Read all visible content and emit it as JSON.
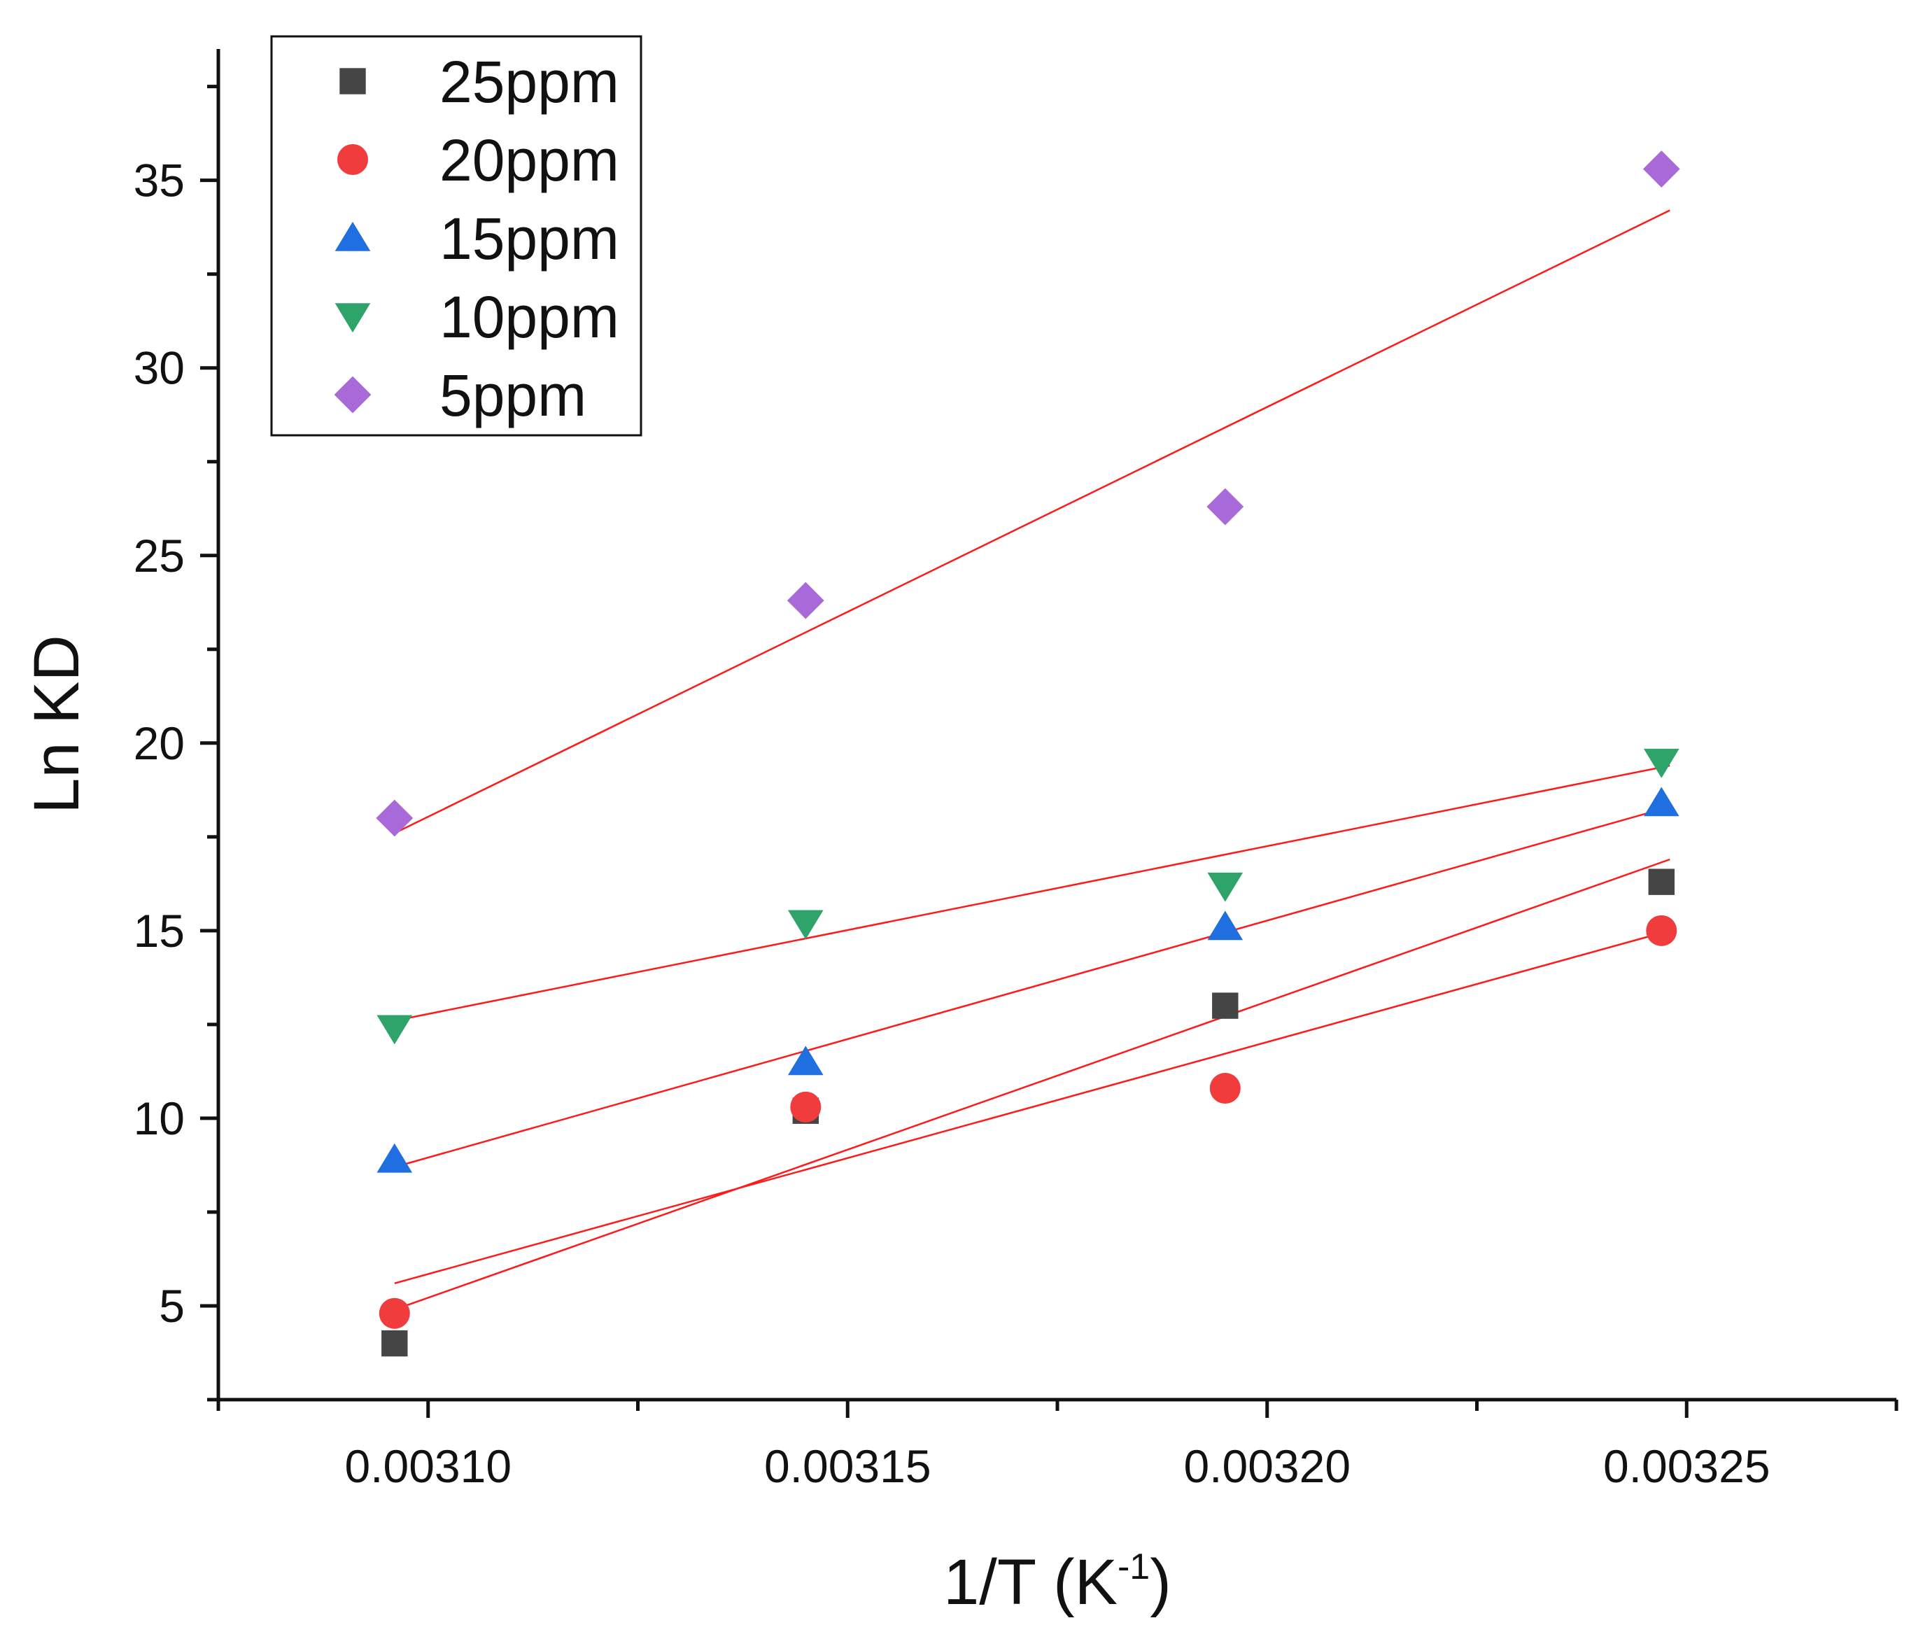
{
  "chart_data": {
    "type": "scatter",
    "title": "",
    "xlabel": "1/T (K",
    "xlabel_superscript": "-1",
    "xlabel_suffix": ")",
    "ylabel": "Ln KD",
    "xlim": [
      0.003075,
      0.003275
    ],
    "ylim": [
      2.5,
      38.5
    ],
    "xticks": [
      0.0031,
      0.00315,
      0.0032,
      0.00325
    ],
    "xtick_labels": [
      "0.00310",
      "0.00315",
      "0.00320",
      "0.00325"
    ],
    "yticks": [
      5,
      10,
      15,
      20,
      25,
      30,
      35
    ],
    "ytick_labels": [
      "5",
      "10",
      "15",
      "20",
      "25",
      "30",
      "35"
    ],
    "legend_position": "top-left",
    "fit_color": "#ff1a1a",
    "series": [
      {
        "name": "25ppm",
        "marker": "square",
        "color": "#454545",
        "x": [
          0.003096,
          0.003145,
          0.003195,
          0.003247
        ],
        "y": [
          4.0,
          10.2,
          13.0,
          16.3
        ],
        "fit": [
          [
            0.003096,
            4.9
          ],
          [
            0.003248,
            16.9
          ]
        ]
      },
      {
        "name": "20ppm",
        "marker": "circle",
        "color": "#f03c3c",
        "x": [
          0.003096,
          0.003145,
          0.003195,
          0.003247
        ],
        "y": [
          4.8,
          10.3,
          10.8,
          15.0
        ],
        "fit": [
          [
            0.003096,
            5.6
          ],
          [
            0.003248,
            15.0
          ]
        ]
      },
      {
        "name": "15ppm",
        "marker": "triangle-up",
        "color": "#1f6fe0",
        "x": [
          0.003096,
          0.003145,
          0.003195,
          0.003247
        ],
        "y": [
          8.9,
          11.5,
          15.1,
          18.4
        ],
        "fit": [
          [
            0.003096,
            8.7
          ],
          [
            0.003248,
            18.3
          ]
        ]
      },
      {
        "name": "10ppm",
        "marker": "triangle-down",
        "color": "#2ea36a",
        "x": [
          0.003096,
          0.003145,
          0.003195,
          0.003247
        ],
        "y": [
          12.4,
          15.2,
          16.2,
          19.5
        ],
        "fit": [
          [
            0.003096,
            12.6
          ],
          [
            0.003248,
            19.4
          ]
        ]
      },
      {
        "name": "5ppm",
        "marker": "diamond",
        "color": "#a86ad8",
        "x": [
          0.003096,
          0.003145,
          0.003195,
          0.003247
        ],
        "y": [
          18.0,
          23.8,
          26.3,
          35.3
        ],
        "fit": [
          [
            0.003096,
            17.6
          ],
          [
            0.003248,
            34.2
          ]
        ]
      }
    ]
  }
}
